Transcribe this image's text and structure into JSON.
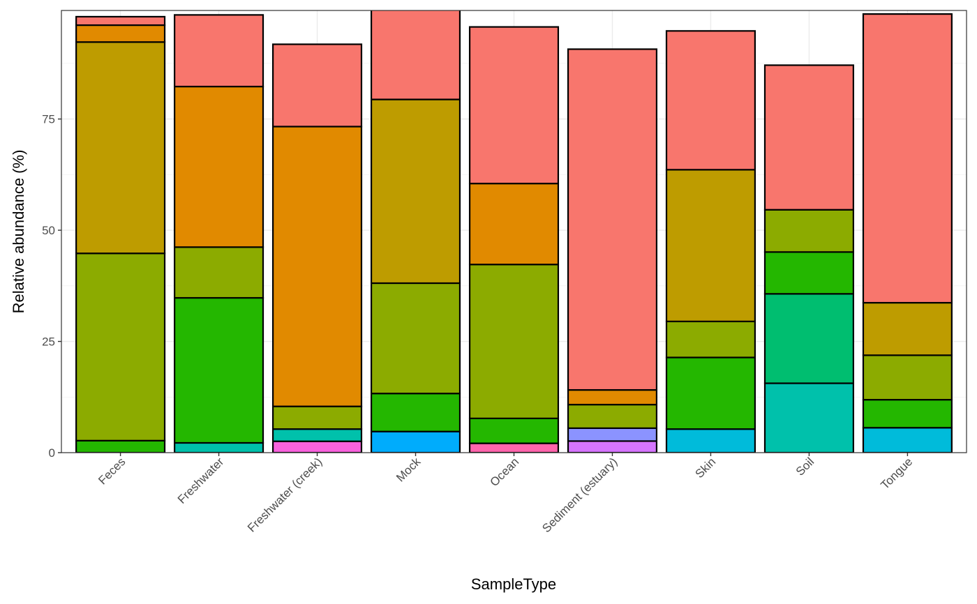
{
  "chart_data": {
    "type": "bar",
    "stacked": true,
    "title": "",
    "xlabel": "SampleType",
    "ylabel": "Relative abundance (%)",
    "ylim": [
      0,
      99.4
    ],
    "y_ticks": [
      0,
      25,
      50,
      75
    ],
    "grid": true,
    "legend": "none",
    "categories": [
      "Feces",
      "Freshwater",
      "Freshwater (creek)",
      "Mock",
      "Ocean",
      "Sediment (estuary)",
      "Skin",
      "Soil",
      "Tongue"
    ],
    "stacks": [
      {
        "category": "Feces",
        "segments": [
          {
            "value": 2.7,
            "color": "#24B700"
          },
          {
            "value": 42.1,
            "color": "#8CAB00"
          },
          {
            "value": 47.5,
            "color": "#BE9C00"
          },
          {
            "value": 3.8,
            "color": "#E18A00"
          },
          {
            "value": 1.9,
            "color": "#F8766D"
          }
        ]
      },
      {
        "category": "Freshwater",
        "segments": [
          {
            "value": 2.2,
            "color": "#00C1AB"
          },
          {
            "value": 32.6,
            "color": "#24B700"
          },
          {
            "value": 11.4,
            "color": "#8CAB00"
          },
          {
            "value": 36.1,
            "color": "#E18A00"
          },
          {
            "value": 16.1,
            "color": "#F8766D"
          }
        ]
      },
      {
        "category": "Freshwater (creek)",
        "segments": [
          {
            "value": 2.55,
            "color": "#F962DD"
          },
          {
            "value": 2.75,
            "color": "#00C1AB"
          },
          {
            "value": 5.1,
            "color": "#8CAB00"
          },
          {
            "value": 62.9,
            "color": "#E18A00"
          },
          {
            "value": 18.5,
            "color": "#F8766D"
          }
        ]
      },
      {
        "category": "Mock",
        "segments": [
          {
            "value": 4.75,
            "color": "#00ACFC"
          },
          {
            "value": 8.55,
            "color": "#24B700"
          },
          {
            "value": 24.8,
            "color": "#8CAB00"
          },
          {
            "value": 41.3,
            "color": "#BE9C00"
          },
          {
            "value": 21.0,
            "color": "#F8766D"
          }
        ]
      },
      {
        "category": "Ocean",
        "segments": [
          {
            "value": 2.1,
            "color": "#FF65AC"
          },
          {
            "value": 5.6,
            "color": "#24B700"
          },
          {
            "value": 34.6,
            "color": "#8CAB00"
          },
          {
            "value": 18.2,
            "color": "#E18A00"
          },
          {
            "value": 35.2,
            "color": "#F8766D"
          }
        ]
      },
      {
        "category": "Sediment (estuary)",
        "segments": [
          {
            "value": 2.6,
            "color": "#D575FE"
          },
          {
            "value": 2.9,
            "color": "#8B93FF"
          },
          {
            "value": 5.3,
            "color": "#8CAB00"
          },
          {
            "value": 3.3,
            "color": "#E18A00"
          },
          {
            "value": 76.6,
            "color": "#F8766D"
          }
        ]
      },
      {
        "category": "Skin",
        "segments": [
          {
            "value": 5.3,
            "color": "#00BBDA"
          },
          {
            "value": 16.1,
            "color": "#24B700"
          },
          {
            "value": 8.1,
            "color": "#8CAB00"
          },
          {
            "value": 34.1,
            "color": "#BE9C00"
          },
          {
            "value": 31.2,
            "color": "#F8766D"
          }
        ]
      },
      {
        "category": "Soil",
        "segments": [
          {
            "value": 15.6,
            "color": "#00C1AB"
          },
          {
            "value": 20.1,
            "color": "#00BE70"
          },
          {
            "value": 9.4,
            "color": "#24B700"
          },
          {
            "value": 9.5,
            "color": "#8CAB00"
          },
          {
            "value": 32.5,
            "color": "#F8766D"
          }
        ]
      },
      {
        "category": "Tongue",
        "segments": [
          {
            "value": 5.6,
            "color": "#00BBDA"
          },
          {
            "value": 6.3,
            "color": "#24B700"
          },
          {
            "value": 10.0,
            "color": "#8CAB00"
          },
          {
            "value": 11.8,
            "color": "#BE9C00"
          },
          {
            "value": 64.9,
            "color": "#F8766D"
          }
        ]
      }
    ]
  }
}
